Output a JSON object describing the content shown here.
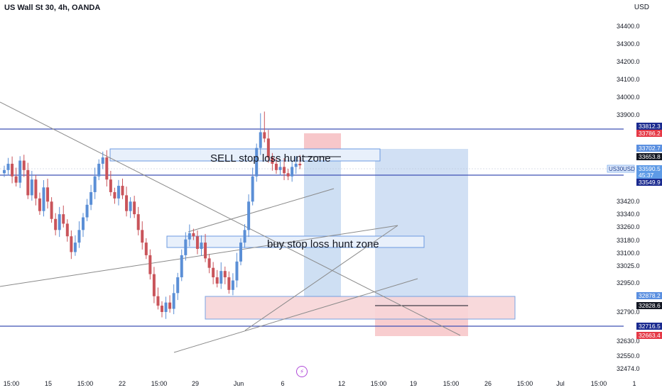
{
  "header": {
    "title": "US Wall St 30, 4h, OANDA",
    "currency": "USD"
  },
  "colors": {
    "bull": "#5b8fd6",
    "bear": "#c9545a",
    "level_line": "#3f51b5",
    "trendline": "#8a8a8a",
    "zone_blue_fill": "#e8f0fb",
    "zone_blue_stroke": "#6b9ae0",
    "zone_red_fill": "#f8d5d8",
    "target_fill": "#c9dbf2",
    "stop_fill": "#f7c4c7"
  },
  "chart_data": {
    "type": "candlestick",
    "y_ticks": [
      "34400.0",
      "34300.0",
      "34200.0",
      "34100.0",
      "34000.0",
      "33900.0",
      "33420.0",
      "33340.0",
      "33260.0",
      "33180.0",
      "33100.0",
      "33025.0",
      "32950.0",
      "32790.0",
      "32630.0",
      "32550.0",
      "32474.0"
    ],
    "x_ticks": [
      "15:00",
      "15",
      "15:00",
      "22",
      "15:00",
      "29",
      "Jun",
      "6",
      "12",
      "15:00",
      "19",
      "15:00",
      "26",
      "15:00",
      "Jul",
      "15:00",
      "1"
    ],
    "price_labels": [
      {
        "text": "33812.3",
        "style": "navy"
      },
      {
        "text": "33786.2",
        "style": "red"
      },
      {
        "text": "33702.7",
        "style": "blue"
      },
      {
        "text": "33653.8",
        "style": "black"
      },
      {
        "text": "33590.5",
        "style": "light"
      },
      {
        "text": "45:37",
        "style": "light"
      },
      {
        "text": "33549.9",
        "style": "navy"
      },
      {
        "text": "32878.2",
        "style": "blue"
      },
      {
        "text": "32828.6",
        "style": "black"
      },
      {
        "text": "32716.5",
        "style": "navy"
      },
      {
        "text": "32663.4",
        "style": "red"
      }
    ],
    "symbol_tag": "US30USD",
    "annotations": [
      {
        "text": "SELL stop loss hunt zone"
      },
      {
        "text": "buy stop loss hunt zone"
      }
    ]
  }
}
